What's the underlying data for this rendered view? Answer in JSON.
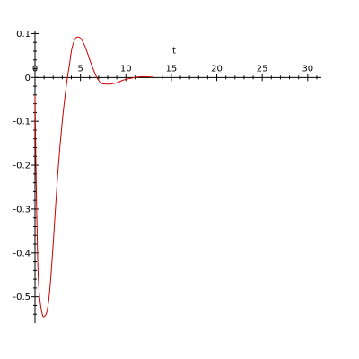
{
  "chart_data": {
    "type": "line",
    "title": "",
    "xlabel": "t",
    "ylabel": "",
    "xlim": [
      0,
      31.5
    ],
    "ylim": [
      -0.56,
      0.105
    ],
    "grid": false,
    "legend": "none",
    "x_ticks": [
      0,
      5,
      10,
      15,
      20,
      25,
      30
    ],
    "y_ticks": [
      0.1,
      0,
      -0.1,
      -0.2,
      -0.3,
      -0.4,
      -0.5
    ],
    "x_tick_labels": [
      "0",
      "5",
      "10",
      "15",
      "20",
      "25",
      "30"
    ],
    "y_tick_labels": [
      "0.1",
      "0",
      "-0.1",
      "-0.2",
      "-0.3",
      "-0.4",
      "-0.5"
    ],
    "series": [
      {
        "color": "#cc0000",
        "x": [
          0,
          0.1,
          0.3,
          0.5,
          0.8,
          1.0,
          1.3,
          1.6,
          2.0,
          2.5,
          3.0,
          3.5,
          3.8,
          4.0,
          4.3,
          4.6,
          5.0,
          5.3,
          5.7,
          6.2,
          6.8,
          7.3,
          7.8,
          8.3,
          9.0,
          9.7,
          10.5,
          11.2,
          12.0,
          13.0
        ],
        "y": [
          -0.04,
          -0.2,
          -0.42,
          -0.5,
          -0.54,
          -0.545,
          -0.535,
          -0.49,
          -0.38,
          -0.22,
          -0.1,
          -0.01,
          0.03,
          0.06,
          0.083,
          0.092,
          0.09,
          0.08,
          0.06,
          0.03,
          0.0,
          -0.013,
          -0.015,
          -0.015,
          -0.012,
          -0.006,
          -0.002,
          0.001,
          0.002,
          0.001
        ]
      }
    ]
  }
}
